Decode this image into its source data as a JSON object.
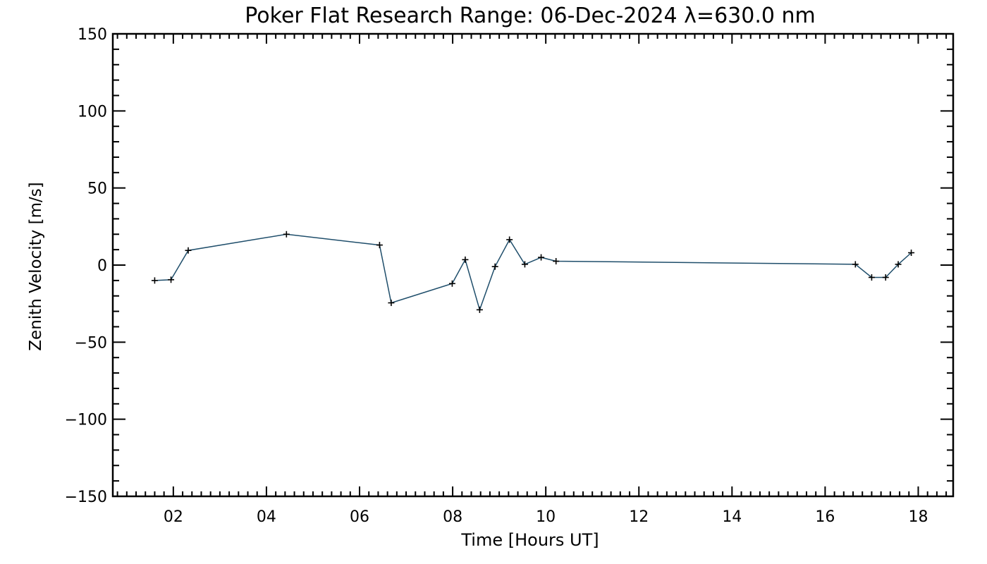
{
  "chart_data": {
    "type": "line",
    "title": "Poker Flat Research Range: 06-Dec-2024 λ=630.0 nm",
    "xlabel": "Time [Hours UT]",
    "ylabel": "Zenith Velocity [m/s]",
    "xlim": [
      0.7,
      18.75
    ],
    "ylim": [
      -150,
      150
    ],
    "x_ticks": [
      {
        "value": 2,
        "label": "02"
      },
      {
        "value": 4,
        "label": "04"
      },
      {
        "value": 6,
        "label": "06"
      },
      {
        "value": 8,
        "label": "08"
      },
      {
        "value": 10,
        "label": "10"
      },
      {
        "value": 12,
        "label": "12"
      },
      {
        "value": 14,
        "label": "14"
      },
      {
        "value": 16,
        "label": "16"
      },
      {
        "value": 18,
        "label": "18"
      }
    ],
    "y_ticks": [
      {
        "value": 150,
        "label": "150"
      },
      {
        "value": 100,
        "label": "100"
      },
      {
        "value": 50,
        "label": "50"
      },
      {
        "value": 0,
        "label": "0"
      },
      {
        "value": -50,
        "label": "−50"
      },
      {
        "value": -100,
        "label": "−100"
      },
      {
        "value": -150,
        "label": "−150"
      }
    ],
    "x_minor_step": 0.2,
    "y_minor_step": 10,
    "grid": false,
    "series": [
      {
        "name": "Zenith Velocity",
        "color": "#1f4e6b",
        "marker_color": "#000000",
        "x": [
          1.6,
          1.95,
          2.32,
          4.43,
          6.43,
          6.68,
          7.99,
          8.27,
          8.58,
          8.91,
          9.22,
          9.55,
          9.9,
          10.22,
          16.65,
          17.0,
          17.3,
          17.57,
          17.85
        ],
        "y": [
          -10,
          -9.5,
          9.5,
          20,
          13,
          -24.5,
          -12,
          3.5,
          -29,
          -1,
          16.5,
          0.5,
          5,
          2.5,
          0.5,
          -8,
          -8,
          0.5,
          8
        ]
      }
    ]
  }
}
